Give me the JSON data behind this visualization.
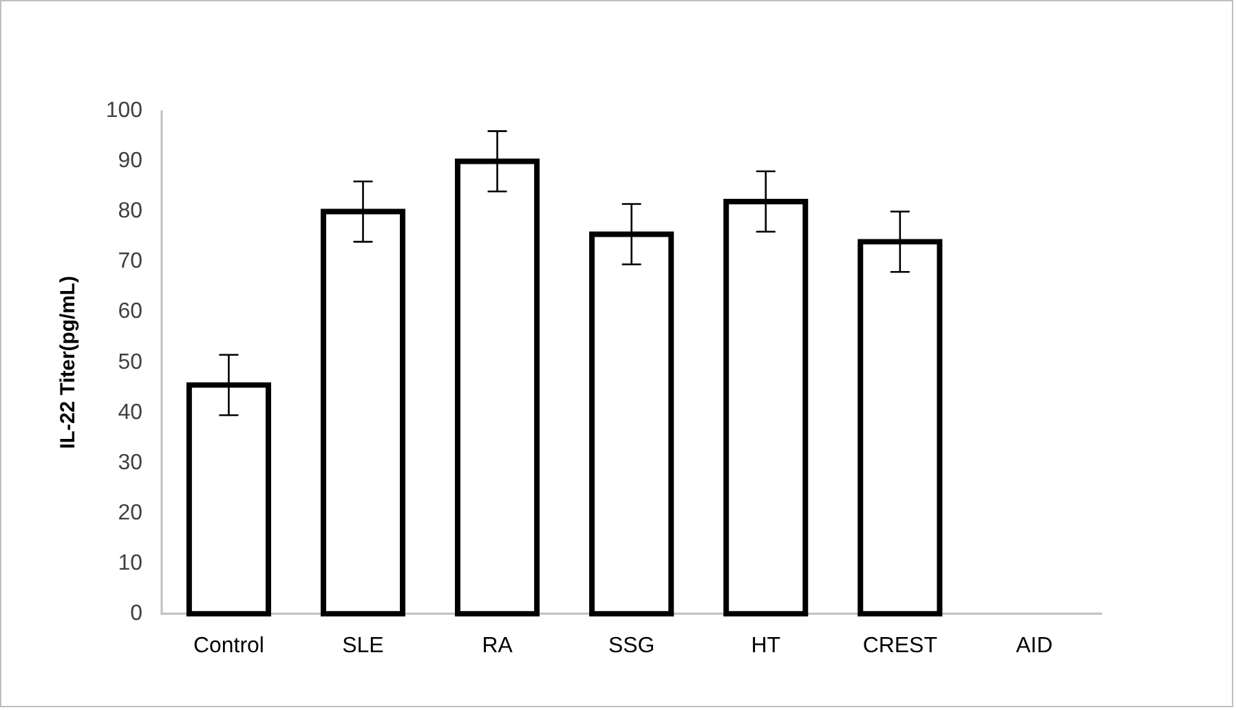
{
  "chart_data": {
    "type": "bar",
    "ylabel": "IL-22 Titer(pg/mL)",
    "categories": [
      "Control",
      "SLE",
      "RA",
      "SSG",
      "HT",
      "CREST",
      "AID"
    ],
    "values": [
      45.5,
      80,
      90,
      75.5,
      82,
      74,
      null
    ],
    "errors": [
      6,
      6,
      6,
      6,
      6,
      6,
      null
    ],
    "color": "#000000",
    "ylim": [
      0,
      100
    ],
    "yticks": [
      0,
      10,
      20,
      30,
      40,
      50,
      60,
      70,
      80,
      90,
      100
    ],
    "grid": false,
    "legend": false
  }
}
